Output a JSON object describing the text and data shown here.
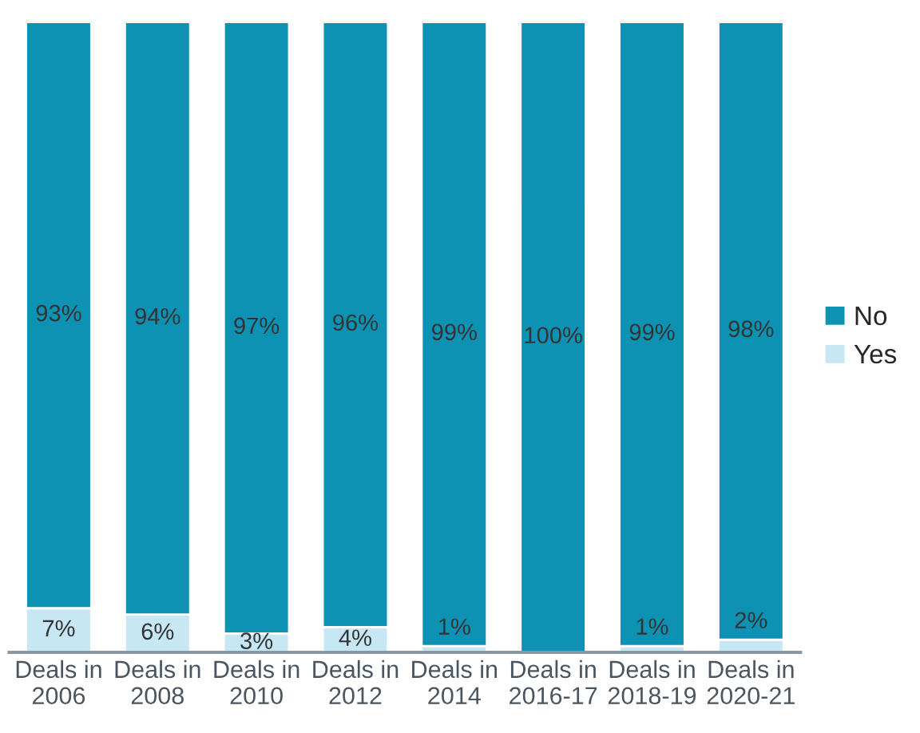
{
  "chart_data": {
    "type": "bar",
    "stacked": true,
    "legend": "right",
    "categories": [
      "Deals in\n2006",
      "Deals in\n2008",
      "Deals in\n2010",
      "Deals in\n2012",
      "Deals in\n2014",
      "Deals in\n2016-17",
      "Deals in\n2018-19",
      "Deals in\n2020-21"
    ],
    "series": [
      {
        "name": "Yes",
        "color": "#c6e7f3",
        "values": [
          7,
          6,
          3,
          4,
          1,
          0,
          1,
          2
        ],
        "value_labels": [
          "7%",
          "6%",
          "3%",
          "4%",
          "1%",
          null,
          "1%",
          "2%"
        ]
      },
      {
        "name": "No",
        "color": "#0d92b3",
        "values": [
          93,
          94,
          97,
          96,
          99,
          100,
          99,
          98
        ],
        "value_labels": [
          "93%",
          "94%",
          "97%",
          "96%",
          "99%",
          "100%",
          "99%",
          "98%"
        ]
      }
    ]
  }
}
